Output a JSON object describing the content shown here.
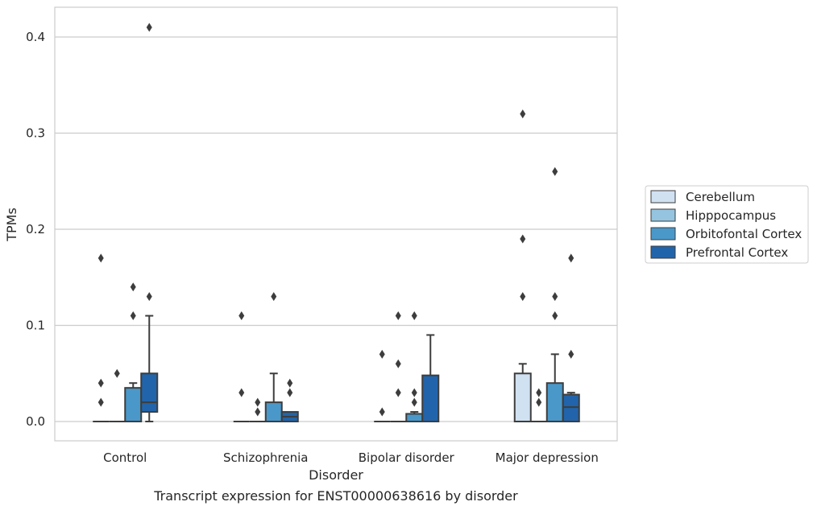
{
  "chart_data": {
    "type": "box",
    "xlabel": "Disorder",
    "ylabel": "TPMs",
    "caption": "Transcript expression for ENST00000638616 by disorder",
    "categories": [
      "Control",
      "Schizophrenia",
      "Bipolar disorder",
      "Major depression"
    ],
    "ylim": [
      -0.02,
      0.43
    ],
    "yticks": [
      0.0,
      0.1,
      0.2,
      0.3,
      0.4
    ],
    "ytick_labels": [
      "0.0",
      "0.1",
      "0.2",
      "0.3",
      "0.4"
    ],
    "grid": "horizontal",
    "legend_position": "right",
    "series": [
      {
        "name": "Cerebellum",
        "color": "#d0e1f2",
        "boxes": [
          {
            "q1": 0,
            "median": 0,
            "q3": 0,
            "whislo": 0,
            "whishi": 0,
            "fliers": [
              0.02,
              0.04,
              0.17
            ]
          },
          {
            "q1": 0,
            "median": 0,
            "q3": 0,
            "whislo": 0,
            "whishi": 0,
            "fliers": [
              0.03,
              0.11
            ]
          },
          {
            "q1": 0,
            "median": 0,
            "q3": 0,
            "whislo": 0,
            "whishi": 0,
            "fliers": [
              0.01,
              0.07
            ]
          },
          {
            "q1": 0,
            "median": 0,
            "q3": 0.05,
            "whislo": 0,
            "whishi": 0.06,
            "fliers": [
              0.13,
              0.19,
              0.32
            ]
          }
        ]
      },
      {
        "name": "Hipppocampus",
        "color": "#94c4df",
        "boxes": [
          {
            "q1": 0,
            "median": 0,
            "q3": 0,
            "whislo": 0,
            "whishi": 0,
            "fliers": [
              0.05
            ]
          },
          {
            "q1": 0,
            "median": 0,
            "q3": 0,
            "whislo": 0,
            "whishi": 0,
            "fliers": [
              0.01,
              0.02
            ]
          },
          {
            "q1": 0,
            "median": 0,
            "q3": 0,
            "whislo": 0,
            "whishi": 0,
            "fliers": [
              0.03,
              0.06,
              0.11
            ]
          },
          {
            "q1": 0,
            "median": 0,
            "q3": 0,
            "whislo": 0,
            "whishi": 0,
            "fliers": [
              0.02,
              0.03
            ]
          }
        ]
      },
      {
        "name": "Orbitofontal Cortex",
        "color": "#4a98c9",
        "boxes": [
          {
            "q1": 0,
            "median": 0,
            "q3": 0.035,
            "whislo": 0,
            "whishi": 0.04,
            "fliers": [
              0.11,
              0.14
            ]
          },
          {
            "q1": 0,
            "median": 0,
            "q3": 0.02,
            "whislo": 0,
            "whishi": 0.05,
            "fliers": [
              0.13
            ]
          },
          {
            "q1": 0,
            "median": 0,
            "q3": 0.008,
            "whislo": 0,
            "whishi": 0.01,
            "fliers": [
              0.02,
              0.03,
              0.11
            ]
          },
          {
            "q1": 0,
            "median": 0,
            "q3": 0.04,
            "whislo": 0,
            "whishi": 0.07,
            "fliers": [
              0.11,
              0.13,
              0.26
            ]
          }
        ]
      },
      {
        "name": "Prefrontal Cortex",
        "color": "#2164ab",
        "boxes": [
          {
            "q1": 0.01,
            "median": 0.02,
            "q3": 0.05,
            "whislo": 0,
            "whishi": 0.11,
            "fliers": [
              0.13,
              0.41
            ]
          },
          {
            "q1": 0,
            "median": 0.005,
            "q3": 0.01,
            "whislo": 0,
            "whishi": 0.01,
            "fliers": [
              0.03,
              0.04
            ]
          },
          {
            "q1": 0,
            "median": 0,
            "q3": 0.048,
            "whislo": 0,
            "whishi": 0.09,
            "fliers": []
          },
          {
            "q1": 0,
            "median": 0.015,
            "q3": 0.028,
            "whislo": 0,
            "whishi": 0.03,
            "fliers": [
              0.07,
              0.17
            ]
          }
        ]
      }
    ]
  }
}
